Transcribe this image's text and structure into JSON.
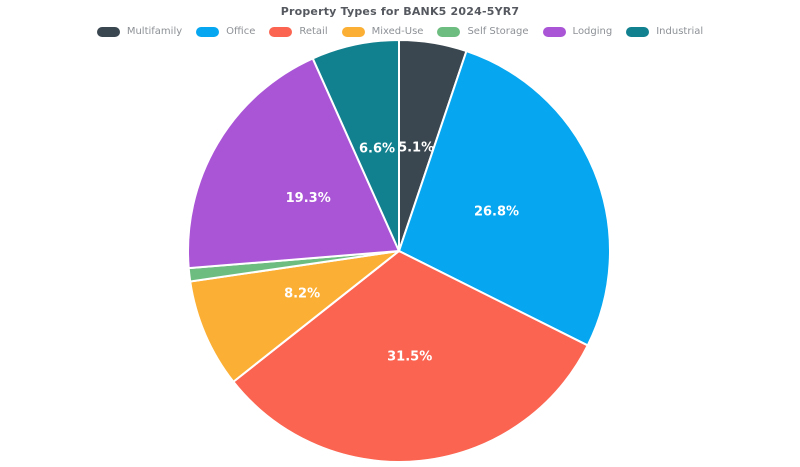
{
  "chart_data": {
    "type": "pie",
    "title": "Property Types for BANK5 2024-5YR7",
    "legend_position": "top-horizontal",
    "direction": "clockwise",
    "start_angle_deg": 0,
    "slice_border_color": "#ffffff",
    "series": [
      {
        "name": "Multifamily",
        "value": 5.1,
        "label": "5.1%",
        "color": "#3a4750"
      },
      {
        "name": "Office",
        "value": 26.8,
        "label": "26.8%",
        "color": "#06a7f0"
      },
      {
        "name": "Retail",
        "value": 31.5,
        "label": "31.5%",
        "color": "#fa6450"
      },
      {
        "name": "Mixed-Use",
        "value": 8.2,
        "label": "8.2%",
        "color": "#fbaf35"
      },
      {
        "name": "Self Storage",
        "value": 1.0,
        "label": "",
        "color": "#6dbd80"
      },
      {
        "name": "Lodging",
        "value": 19.3,
        "label": "19.3%",
        "color": "#a955d6"
      },
      {
        "name": "Industrial",
        "value": 6.6,
        "label": "6.6%",
        "color": "#11808f"
      }
    ]
  }
}
